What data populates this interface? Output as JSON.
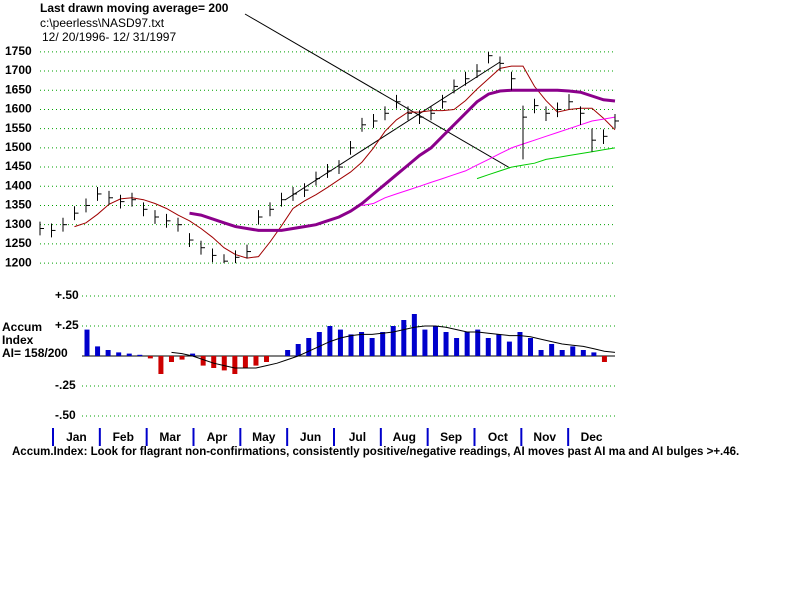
{
  "header": {
    "title": "Last drawn moving average= 200",
    "file": "c:\\peerless\\NASD97.txt",
    "date_range": "12/ 20/1996- 12/ 31/1997"
  },
  "x_axis": {
    "labels": [
      "Jan",
      "Feb",
      "Mar",
      "Apr",
      "May",
      "Jun",
      "Jul",
      "Aug",
      "Sep",
      "Oct",
      "Nov",
      "Dec"
    ]
  },
  "chart_data": [
    {
      "type": "ohlc",
      "color": "#000000",
      "grid": true,
      "grid_color": "#00a000",
      "categories": [
        null,
        null,
        null,
        null,
        null,
        null,
        null,
        null,
        null,
        null,
        null,
        null,
        null,
        null,
        null,
        null,
        null,
        null,
        null,
        null,
        null,
        null,
        null,
        null,
        null,
        null,
        null,
        null,
        null,
        null,
        null,
        null,
        null,
        null,
        null,
        null,
        null,
        null,
        null,
        null,
        null,
        null,
        null,
        null,
        null,
        null,
        null,
        null,
        null,
        null,
        null
      ],
      "high": [
        1308,
        1303,
        1318,
        1348,
        1368,
        1398,
        1388,
        1378,
        1383,
        1358,
        1338,
        1328,
        1318,
        1278,
        1258,
        1238,
        1223,
        1233,
        1248,
        1338,
        1358,
        1383,
        1398,
        1408,
        1438,
        1458,
        1468,
        1518,
        1578,
        1588,
        1608,
        1638,
        1608,
        1598,
        1608,
        1638,
        1678,
        1698,
        1718,
        1750,
        1738,
        1698,
        1610,
        1628,
        1608,
        1618,
        1640,
        1608,
        1550,
        1548,
        1588
      ],
      "low": [
        1272,
        1267,
        1282,
        1312,
        1332,
        1362,
        1352,
        1342,
        1347,
        1322,
        1302,
        1292,
        1282,
        1242,
        1222,
        1202,
        1200,
        1200,
        1212,
        1300,
        1322,
        1347,
        1362,
        1372,
        1402,
        1422,
        1432,
        1482,
        1542,
        1552,
        1572,
        1602,
        1572,
        1562,
        1572,
        1602,
        1642,
        1662,
        1682,
        1720,
        1700,
        1650,
        1470,
        1590,
        1570,
        1580,
        1600,
        1560,
        1490,
        1510,
        1550
      ],
      "close": [
        1290,
        1285,
        1300,
        1330,
        1350,
        1380,
        1370,
        1360,
        1365,
        1340,
        1320,
        1310,
        1300,
        1260,
        1240,
        1220,
        1205,
        1215,
        1230,
        1320,
        1340,
        1365,
        1380,
        1390,
        1420,
        1440,
        1450,
        1500,
        1560,
        1570,
        1590,
        1620,
        1590,
        1580,
        1590,
        1620,
        1660,
        1680,
        1700,
        1740,
        1720,
        1680,
        1580,
        1610,
        1590,
        1600,
        1620,
        1590,
        1520,
        1530,
        1570
      ],
      "series": [
        {
          "color": "#a00000",
          "width": 1,
          "values": [
            null,
            null,
            null,
            1295,
            1305,
            1327,
            1353,
            1367,
            1370,
            1365,
            1355,
            1342,
            1325,
            1310,
            1290,
            1267,
            1240,
            1222,
            1213,
            1217,
            1255,
            1297,
            1342,
            1362,
            1378,
            1397,
            1417,
            1437,
            1463,
            1500,
            1543,
            1573,
            1593,
            1593,
            1597,
            1597,
            1600,
            1623,
            1653,
            1680,
            1707,
            1713,
            1713,
            1660,
            1623,
            1593,
            1600,
            1603,
            1603,
            1577,
            1547
          ]
        },
        {
          "color": "#8b008b",
          "width": 3,
          "values": [
            null,
            null,
            null,
            null,
            null,
            null,
            null,
            null,
            null,
            null,
            null,
            null,
            null,
            1330,
            1325,
            1315,
            1305,
            1295,
            1290,
            1285,
            1285,
            1285,
            1290,
            1295,
            1300,
            1310,
            1320,
            1335,
            1355,
            1380,
            1405,
            1430,
            1455,
            1480,
            1500,
            1530,
            1560,
            1590,
            1620,
            1640,
            1648,
            1650,
            1650,
            1650,
            1650,
            1650,
            1648,
            1645,
            1635,
            1625,
            1622
          ]
        },
        {
          "color": "#ff00ff",
          "width": 1,
          "values": [
            null,
            null,
            null,
            null,
            null,
            null,
            null,
            null,
            null,
            null,
            null,
            null,
            null,
            null,
            null,
            null,
            null,
            null,
            null,
            null,
            null,
            null,
            null,
            null,
            null,
            null,
            null,
            null,
            1350,
            1355,
            1370,
            1380,
            1390,
            1400,
            1410,
            1420,
            1430,
            1440,
            1455,
            1470,
            1485,
            1500,
            1510,
            1520,
            1530,
            1540,
            1550,
            1560,
            1570,
            1575,
            1580
          ]
        },
        {
          "color": "#00cc00",
          "width": 1,
          "values": [
            null,
            null,
            null,
            null,
            null,
            null,
            null,
            null,
            null,
            null,
            null,
            null,
            null,
            null,
            null,
            null,
            null,
            null,
            null,
            null,
            null,
            null,
            null,
            null,
            null,
            null,
            null,
            null,
            null,
            null,
            null,
            null,
            null,
            null,
            null,
            null,
            null,
            null,
            1420,
            1430,
            1440,
            1450,
            1455,
            1460,
            1470,
            1475,
            1480,
            1485,
            1490,
            1495,
            1500
          ]
        }
      ],
      "ylim": [
        1195,
        1760
      ],
      "yticks": [
        1200,
        1250,
        1300,
        1350,
        1400,
        1450,
        1500,
        1550,
        1600,
        1650,
        1700,
        1750
      ]
    },
    {
      "type": "bar",
      "title": "Accum",
      "subtitle": "Index",
      "annotation": "AI= 158/200",
      "grid": true,
      "grid_color": "#00a000",
      "positive_color": "#0000cc",
      "negative_color": "#cc0000",
      "values": [
        0.22,
        0.08,
        0.05,
        0.03,
        0.02,
        0.01,
        -0.02,
        -0.15,
        -0.05,
        -0.03,
        0.02,
        -0.08,
        -0.1,
        -0.12,
        -0.15,
        -0.1,
        -0.08,
        -0.05,
        0,
        0.05,
        0.1,
        0.15,
        0.2,
        0.25,
        0.22,
        0.18,
        0.2,
        0.15,
        0.2,
        0.25,
        0.3,
        0.35,
        0.22,
        0.25,
        0.2,
        0.15,
        0.2,
        0.22,
        0.15,
        0.18,
        0.12,
        0.2,
        0.15,
        0.05,
        0.1,
        0.05,
        0.08,
        0.05,
        0.03,
        -0.05,
        0
      ],
      "series": [
        {
          "color": "#000000",
          "values": [
            null,
            null,
            null,
            null,
            null,
            null,
            null,
            null,
            0.03,
            0.02,
            0,
            -0.03,
            -0.06,
            -0.08,
            -0.1,
            -0.1,
            -0.1,
            -0.08,
            -0.06,
            -0.03,
            0,
            0.04,
            0.08,
            0.12,
            0.15,
            0.17,
            0.18,
            0.18,
            0.19,
            0.2,
            0.22,
            0.24,
            0.25,
            0.25,
            0.24,
            0.22,
            0.2,
            0.2,
            0.19,
            0.18,
            0.17,
            0.17,
            0.16,
            0.14,
            0.12,
            0.1,
            0.09,
            0.08,
            0.06,
            0.04,
            0.03
          ]
        }
      ],
      "ylim": [
        -0.55,
        0.55
      ],
      "yticks": [
        {
          "value": 0.5,
          "label": "+.50"
        },
        {
          "value": 0.25,
          "label": "+.25"
        },
        {
          "value": -0.25,
          "label": "-.25"
        },
        {
          "value": -0.5,
          "label": "-.50"
        }
      ]
    }
  ],
  "footnote": "Accum.Index: Look for flagrant non-confirmations, consistently positive/negative readings, AI moves past AI ma and AI bulges >+.46."
}
